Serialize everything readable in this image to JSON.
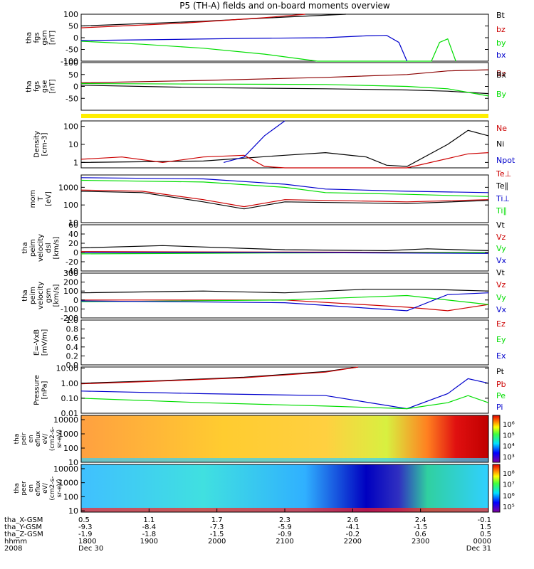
{
  "title": "P5 (TH-A) fields and on-board moments overview",
  "colors": {
    "black": "#000000",
    "red": "#cc0000",
    "darkred": "#8b0000",
    "green": "#00dd00",
    "blue": "#0000cc"
  },
  "chart_data": {
    "type": "line",
    "x_range": [
      "2008-12-30 18:00",
      "2008-12-31 00:00"
    ],
    "panels": [
      {
        "id": "fgs-gsm",
        "ylabel": [
          "tha",
          "fgs",
          "gsm",
          "[nT]"
        ],
        "yscale": "linear",
        "ylim": [
          -100,
          100
        ],
        "ticks": [
          "100",
          "50",
          "0",
          "-50",
          "-100"
        ],
        "tick_values": [
          100,
          50,
          0,
          -50,
          -100
        ],
        "legend": [
          {
            "name": "Bt",
            "color": "#000000"
          },
          {
            "name": "bz",
            "color": "#cc0000"
          },
          {
            "name": "by",
            "color": "#00dd00"
          },
          {
            "name": "bx",
            "color": "#0000cc"
          }
        ],
        "series": [
          {
            "name": "Bt",
            "color": "#000000",
            "x": [
              0,
              0.3,
              0.5,
              0.65
            ],
            "y": [
              50,
              70,
              88,
              100
            ]
          },
          {
            "name": "bz",
            "color": "#cc0000",
            "x": [
              0,
              0.25,
              0.45,
              0.55
            ],
            "y": [
              42,
              62,
              85,
              100
            ]
          },
          {
            "name": "by",
            "color": "#00dd00",
            "x": [
              0,
              0.15,
              0.3,
              0.45,
              0.58,
              0.86,
              0.88,
              0.9,
              0.92
            ],
            "y": [
              -15,
              -28,
              -45,
              -70,
              -100,
              -100,
              -20,
              -5,
              -100
            ]
          },
          {
            "name": "bx",
            "color": "#0000cc",
            "x": [
              0,
              0.2,
              0.4,
              0.6,
              0.7,
              0.75,
              0.78,
              0.8
            ],
            "y": [
              -12,
              -8,
              -3,
              0,
              8,
              10,
              -20,
              -100
            ]
          }
        ]
      },
      {
        "id": "fgs-gse",
        "ylabel": [
          "tha",
          "fgs",
          "gse",
          "[nT]"
        ],
        "yscale": "linear",
        "ylim": [
          -100,
          100
        ],
        "ticks": [
          "100",
          "50",
          "0",
          "-50"
        ],
        "tick_values": [
          100,
          50,
          0,
          -50
        ],
        "legend": [
          {
            "name": "Bz",
            "color": "#8b0000"
          },
          {
            "name": "Bx",
            "color": "#000000"
          },
          {
            "name": "By",
            "color": "#00dd00"
          }
        ],
        "series": [
          {
            "name": "Bz",
            "color": "#8b0000",
            "x": [
              0,
              0.3,
              0.6,
              0.8,
              0.9,
              1.0
            ],
            "y": [
              15,
              25,
              38,
              50,
              65,
              70
            ]
          },
          {
            "name": "Bx",
            "color": "#000000",
            "x": [
              0,
              0.3,
              0.6,
              0.8,
              0.9,
              1.0
            ],
            "y": [
              5,
              -5,
              -10,
              -15,
              -20,
              -30
            ]
          },
          {
            "name": "By",
            "color": "#00dd00",
            "x": [
              0,
              0.3,
              0.6,
              0.8,
              0.9,
              1.0
            ],
            "y": [
              12,
              10,
              8,
              0,
              -10,
              -40
            ]
          }
        ]
      },
      {
        "id": "density",
        "ylabel": [
          "Density",
          "[cm-3]"
        ],
        "yscale": "log",
        "ylim": [
          0.5,
          200
        ],
        "ticks": [
          "100",
          "10",
          "1"
        ],
        "tick_values": [
          100,
          10,
          1
        ],
        "legend": [
          {
            "name": "Ne",
            "color": "#cc0000"
          },
          {
            "name": "Ni",
            "color": "#000000"
          },
          {
            "name": "Npot",
            "color": "#0000cc"
          }
        ],
        "series": [
          {
            "name": "Ni",
            "color": "#000000",
            "x": [
              0,
              0.3,
              0.5,
              0.6,
              0.7,
              0.75,
              0.8,
              0.9,
              0.95,
              1.0
            ],
            "y": [
              1,
              1.2,
              2.5,
              3.5,
              2,
              0.7,
              0.6,
              10,
              60,
              30
            ]
          },
          {
            "name": "Ne",
            "color": "#cc0000",
            "x": [
              0,
              0.1,
              0.2,
              0.3,
              0.4,
              0.45,
              0.5,
              0.8,
              0.95,
              1.0
            ],
            "y": [
              1.5,
              2,
              1,
              2,
              2.5,
              0.6,
              0.5,
              0.5,
              3,
              3.5
            ]
          },
          {
            "name": "Npot",
            "color": "#0000cc",
            "x": [
              0.35,
              0.4,
              0.45,
              0.5
            ],
            "y": [
              1,
              2,
              30,
              200
            ]
          }
        ]
      },
      {
        "id": "mom-temp",
        "ylabel": [
          "mom",
          "T",
          "[eV]"
        ],
        "yscale": "log",
        "ylim": [
          10,
          5000
        ],
        "ticks": [
          "1000",
          "100",
          "10"
        ],
        "tick_values": [
          1000,
          100,
          10
        ],
        "legend": [
          {
            "name": "Te⊥",
            "color": "#cc0000"
          },
          {
            "name": "Te∥",
            "color": "#000000"
          },
          {
            "name": "Ti⊥",
            "color": "#0000cc"
          },
          {
            "name": "Ti∥",
            "color": "#00dd00"
          }
        ],
        "series": [
          {
            "name": "Ti⊥",
            "color": "#0000cc",
            "x": [
              0,
              0.3,
              0.5,
              0.6,
              0.8,
              1.0
            ],
            "y": [
              3500,
              3000,
              1500,
              800,
              600,
              500
            ]
          },
          {
            "name": "Ti∥",
            "color": "#00dd00",
            "x": [
              0,
              0.3,
              0.5,
              0.6,
              0.8,
              1.0
            ],
            "y": [
              2500,
              2000,
              1000,
              500,
              400,
              300
            ]
          },
          {
            "name": "Te⊥",
            "color": "#cc0000",
            "x": [
              0,
              0.15,
              0.3,
              0.4,
              0.5,
              0.8,
              1.0
            ],
            "y": [
              700,
              600,
              200,
              80,
              200,
              150,
              200
            ]
          },
          {
            "name": "Te∥",
            "color": "#000000",
            "x": [
              0,
              0.15,
              0.3,
              0.4,
              0.5,
              0.8,
              1.0
            ],
            "y": [
              600,
              500,
              150,
              60,
              150,
              120,
              180
            ]
          }
        ]
      },
      {
        "id": "peim-velocity-dsl",
        "ylabel": [
          "tha",
          "peim",
          "velocity",
          "dsl",
          "[km/s]"
        ],
        "yscale": "linear",
        "ylim": [
          -40,
          60
        ],
        "ticks": [
          "60",
          "40",
          "20",
          "0",
          "-20",
          "-40"
        ],
        "tick_values": [
          60,
          40,
          20,
          0,
          -20,
          -40
        ],
        "legend": [
          {
            "name": "Vt",
            "color": "#000000"
          },
          {
            "name": "Vz",
            "color": "#cc0000"
          },
          {
            "name": "Vy",
            "color": "#00dd00"
          },
          {
            "name": "Vx",
            "color": "#0000cc"
          }
        ],
        "series": [
          {
            "name": "Vt",
            "color": "#000000",
            "x": [
              0,
              0.2,
              0.5,
              0.75,
              0.85,
              1.0
            ],
            "y": [
              10,
              15,
              6,
              4,
              8,
              4
            ]
          },
          {
            "name": "Vz",
            "color": "#cc0000",
            "x": [
              0,
              0.5,
              1.0
            ],
            "y": [
              2,
              1,
              0
            ]
          },
          {
            "name": "Vy",
            "color": "#00dd00",
            "x": [
              0,
              0.5,
              1.0
            ],
            "y": [
              -3,
              -1,
              0
            ]
          },
          {
            "name": "Vx",
            "color": "#0000cc",
            "x": [
              0,
              0.5,
              1.0
            ],
            "y": [
              0,
              0,
              -2
            ]
          }
        ]
      },
      {
        "id": "peim-velocity-gsm",
        "ylabel": [
          "tha",
          "peim",
          "velocity",
          "gsm",
          "[km/s]"
        ],
        "yscale": "linear",
        "ylim": [
          -200,
          300
        ],
        "ticks": [
          "300",
          "200",
          "100",
          "0",
          "-100",
          "-200"
        ],
        "tick_values": [
          300,
          200,
          100,
          0,
          -100,
          -200
        ],
        "legend": [
          {
            "name": "Vt",
            "color": "#000000"
          },
          {
            "name": "Vz",
            "color": "#cc0000"
          },
          {
            "name": "Vy",
            "color": "#00dd00"
          },
          {
            "name": "Vx",
            "color": "#0000cc"
          }
        ],
        "series": [
          {
            "name": "Vt",
            "color": "#000000",
            "x": [
              0,
              0.3,
              0.5,
              0.7,
              0.85,
              1.0
            ],
            "y": [
              80,
              100,
              80,
              120,
              120,
              100
            ]
          },
          {
            "name": "Vz",
            "color": "#cc0000",
            "x": [
              0,
              0.5,
              0.8,
              0.9,
              1.0
            ],
            "y": [
              0,
              0,
              -80,
              -120,
              -50
            ]
          },
          {
            "name": "Vy",
            "color": "#00dd00",
            "x": [
              0,
              0.5,
              0.8,
              1.0
            ],
            "y": [
              -20,
              0,
              50,
              -50
            ]
          },
          {
            "name": "Vx",
            "color": "#0000cc",
            "x": [
              0,
              0.5,
              0.8,
              0.9,
              1.0
            ],
            "y": [
              -10,
              -30,
              -120,
              60,
              80
            ]
          }
        ]
      },
      {
        "id": "e-field",
        "ylabel": [
          "E=-VxB",
          "[mV/m]"
        ],
        "yscale": "linear",
        "ylim": [
          0,
          1
        ],
        "ticks": [
          "1.0",
          "0.8",
          "0.6",
          "0.4",
          "0.2",
          "0.0"
        ],
        "tick_values": [
          1,
          0.8,
          0.6,
          0.4,
          0.2,
          0
        ],
        "legend": [
          {
            "name": "Ez",
            "color": "#cc0000"
          },
          {
            "name": "Ey",
            "color": "#00dd00"
          },
          {
            "name": "Ex",
            "color": "#0000cc"
          }
        ],
        "series": []
      },
      {
        "id": "pressure",
        "ylabel": [
          "Pressure",
          "[nPa]"
        ],
        "yscale": "log",
        "ylim": [
          0.01,
          12
        ],
        "ticks": [
          "10.00",
          "1.00",
          "0.10",
          "0.01"
        ],
        "tick_values": [
          10,
          1,
          0.1,
          0.01
        ],
        "legend": [
          {
            "name": "Pt",
            "color": "#000000"
          },
          {
            "name": "Pb",
            "color": "#cc0000"
          },
          {
            "name": "Pe",
            "color": "#00dd00"
          },
          {
            "name": "Pi",
            "color": "#0000cc"
          }
        ],
        "series": [
          {
            "name": "Pt",
            "color": "#000000",
            "x": [
              0,
              0.2,
              0.4,
              0.6,
              0.68
            ],
            "y": [
              1,
              1.5,
              2.5,
              6,
              12
            ]
          },
          {
            "name": "Pb",
            "color": "#cc0000",
            "x": [
              0,
              0.2,
              0.4,
              0.6,
              0.68
            ],
            "y": [
              0.9,
              1.4,
              2.3,
              5.5,
              12
            ]
          },
          {
            "name": "Pi",
            "color": "#0000cc",
            "x": [
              0,
              0.3,
              0.6,
              0.8,
              0.9,
              0.95,
              1.0
            ],
            "y": [
              0.3,
              0.2,
              0.15,
              0.02,
              0.2,
              2,
              1
            ]
          },
          {
            "name": "Pe",
            "color": "#00dd00",
            "x": [
              0,
              0.3,
              0.6,
              0.8,
              0.9,
              0.95,
              1.0
            ],
            "y": [
              0.1,
              0.05,
              0.03,
              0.02,
              0.05,
              0.15,
              0.05
            ]
          }
        ]
      }
    ],
    "spectrograms": [
      {
        "id": "peir-en-eflux",
        "ylabel": [
          "tha",
          "peir",
          "en",
          "eflux",
          "eV/",
          "(cm2-s-",
          "sr-eV)"
        ],
        "yscale": "log",
        "ylim": [
          10,
          20000
        ],
        "ticks": [
          "10000",
          "1000",
          "100",
          "10"
        ],
        "tick_values": [
          10000,
          1000,
          100,
          10
        ],
        "colorbar_ticks": [
          "10⁶",
          "10⁵",
          "10⁴",
          "10³"
        ]
      },
      {
        "id": "peer-en-eflux",
        "ylabel": [
          "tha",
          "peer",
          "en",
          "eflux",
          "eV/",
          "(cm2-s-",
          "sr-eV)"
        ],
        "yscale": "log",
        "ylim": [
          8,
          20000
        ],
        "ticks": [
          "10000",
          "1000",
          "100",
          "10"
        ],
        "tick_values": [
          10000,
          1000,
          100,
          10
        ],
        "colorbar_ticks": [
          "10⁸",
          "10⁷",
          "10⁶",
          "10⁵"
        ]
      }
    ],
    "x_axis": {
      "rows": [
        {
          "label": "tha_X-GSM",
          "values": [
            "0.5",
            "1.1",
            "1.7",
            "2.3",
            "2.6",
            "2.4",
            "-0.1"
          ]
        },
        {
          "label": "tha_Y-GSM",
          "values": [
            "-9.3",
            "-8.4",
            "-7.3",
            "-5.9",
            "-4.1",
            "-1.5",
            "1.5"
          ]
        },
        {
          "label": "tha_Z-GSM",
          "values": [
            "-1.9",
            "-1.8",
            "-1.5",
            "-0.9",
            "-0.2",
            "0.6",
            "0.5"
          ]
        },
        {
          "label": "hhmm",
          "values": [
            "1800",
            "1900",
            "2000",
            "2100",
            "2200",
            "2300",
            "0000"
          ]
        },
        {
          "label": "2008",
          "values": [
            "Dec 30",
            "",
            "",
            "",
            "",
            "",
            "Dec 31"
          ]
        }
      ]
    }
  }
}
